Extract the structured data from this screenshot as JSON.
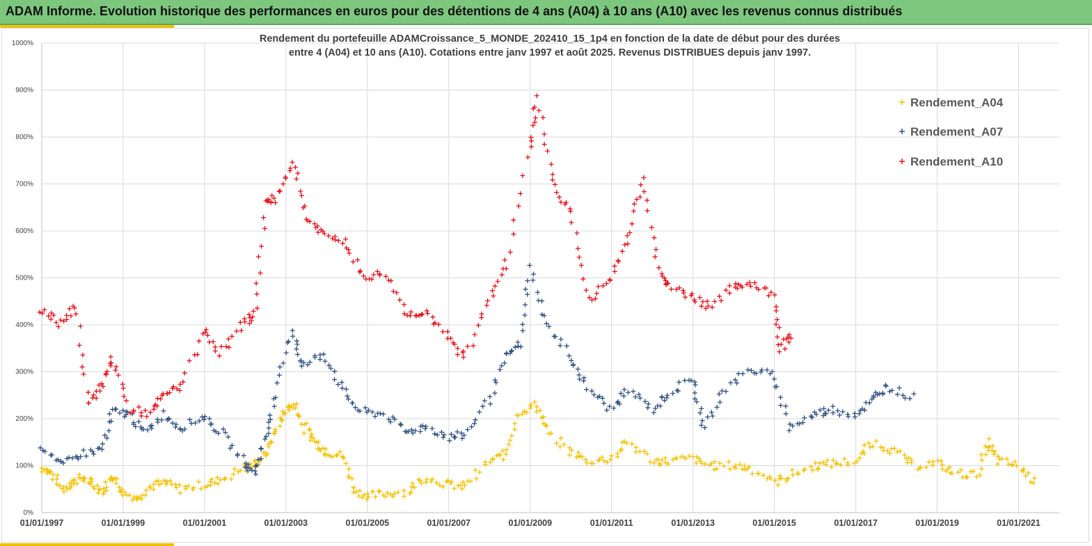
{
  "header": {
    "title": "ADAM Informe. Evolution historique des performances en euros pour des détentions de 4 ans (A04) à 10 ans (A10) avec les revenus connus distribués"
  },
  "colors": {
    "banner": "#7dc67e",
    "accent": "#f2c100",
    "A04": "#f2c100",
    "A07": "#2f4f7f",
    "A10": "#e3101a"
  },
  "chart_data": {
    "type": "scatter",
    "title_line1": "Rendement du portefeuille ADAMCroissance_5_MONDE_202410_15_1p4  en fonction de la date de début pour des durées",
    "title_line2": "entre 4 (A04) et 10 ans (A10). Cotations entre janv 1997 et août 2025. Revenus DISTRIBUES depuis janv 1997.",
    "marker": "+",
    "ylim": [
      0,
      10
    ],
    "yticks": [
      "0%",
      "100%",
      "200%",
      "300%",
      "400%",
      "500%",
      "600%",
      "700%",
      "800%",
      "900%",
      "1000%"
    ],
    "xlim": [
      "1997-01-01",
      "2022-01-01"
    ],
    "xticks": [
      "01/01/1997",
      "01/01/1999",
      "01/01/2001",
      "01/01/2003",
      "01/01/2005",
      "01/01/2007",
      "01/01/2009",
      "01/01/2011",
      "01/01/2013",
      "01/01/2015",
      "01/01/2017",
      "01/01/2019",
      "01/01/2021"
    ],
    "grid": true,
    "legend_position": "top-right",
    "series": [
      {
        "name": "Rendement_A04",
        "points": [
          [
            "1997-01-01",
            0.95
          ],
          [
            "1997-04-01",
            0.85
          ],
          [
            "1997-07-01",
            0.5
          ],
          [
            "1997-10-01",
            0.65
          ],
          [
            "1998-01-01",
            0.75
          ],
          [
            "1998-04-01",
            0.6
          ],
          [
            "1998-07-01",
            0.45
          ],
          [
            "1998-10-01",
            0.8
          ],
          [
            "1999-01-01",
            0.45
          ],
          [
            "1999-05-01",
            0.3
          ],
          [
            "1999-09-01",
            0.55
          ],
          [
            "2000-01-01",
            0.65
          ],
          [
            "2000-06-01",
            0.5
          ],
          [
            "2001-01-01",
            0.6
          ],
          [
            "2001-06-01",
            0.7
          ],
          [
            "2002-01-01",
            0.95
          ],
          [
            "2002-04-01",
            1.05
          ],
          [
            "2002-07-01",
            1.25
          ],
          [
            "2002-10-01",
            1.75
          ],
          [
            "2003-01-01",
            2.2
          ],
          [
            "2003-04-01",
            2.3
          ],
          [
            "2003-07-01",
            1.75
          ],
          [
            "2003-10-01",
            1.5
          ],
          [
            "2004-01-01",
            1.3
          ],
          [
            "2004-06-01",
            1.2
          ],
          [
            "2004-09-01",
            0.5
          ],
          [
            "2005-01-01",
            0.35
          ],
          [
            "2005-06-01",
            0.4
          ],
          [
            "2006-01-01",
            0.45
          ],
          [
            "2006-06-01",
            0.75
          ],
          [
            "2007-01-01",
            0.6
          ],
          [
            "2007-06-01",
            0.55
          ],
          [
            "2008-01-01",
            1.1
          ],
          [
            "2008-06-01",
            1.25
          ],
          [
            "2008-10-01",
            2.15
          ],
          [
            "2009-03-01",
            2.3
          ],
          [
            "2009-06-01",
            1.7
          ],
          [
            "2010-01-01",
            1.3
          ],
          [
            "2010-06-01",
            1.1
          ],
          [
            "2011-01-01",
            1.15
          ],
          [
            "2011-06-01",
            1.5
          ],
          [
            "2012-01-01",
            1.1
          ],
          [
            "2012-06-01",
            1.1
          ],
          [
            "2013-01-01",
            1.15
          ],
          [
            "2013-06-01",
            1.0
          ],
          [
            "2014-01-01",
            1.0
          ],
          [
            "2014-06-01",
            0.95
          ],
          [
            "2015-01-01",
            0.65
          ],
          [
            "2015-06-01",
            0.8
          ],
          [
            "2016-01-01",
            1.0
          ],
          [
            "2016-06-01",
            1.05
          ],
          [
            "2017-01-01",
            1.1
          ],
          [
            "2017-06-01",
            1.5
          ],
          [
            "2018-01-01",
            1.3
          ],
          [
            "2018-06-01",
            1.0
          ],
          [
            "2019-01-01",
            1.05
          ],
          [
            "2019-06-01",
            0.85
          ],
          [
            "2020-01-01",
            0.8
          ],
          [
            "2020-04-01",
            1.5
          ],
          [
            "2020-07-01",
            1.1
          ],
          [
            "2021-01-01",
            1.0
          ],
          [
            "2021-06-01",
            0.65
          ]
        ]
      },
      {
        "name": "Rendement_A07",
        "points": [
          [
            "1997-01-01",
            1.45
          ],
          [
            "1997-07-01",
            1.0
          ],
          [
            "1998-01-01",
            1.25
          ],
          [
            "1998-07-01",
            1.35
          ],
          [
            "1998-10-01",
            2.15
          ],
          [
            "1999-03-01",
            2.1
          ],
          [
            "1999-07-01",
            1.7
          ],
          [
            "2000-01-01",
            2.1
          ],
          [
            "2000-06-01",
            1.8
          ],
          [
            "2001-01-01",
            2.05
          ],
          [
            "2001-06-01",
            1.7
          ],
          [
            "2002-01-01",
            1.05
          ],
          [
            "2002-04-01",
            0.85
          ],
          [
            "2002-07-01",
            1.6
          ],
          [
            "2002-10-01",
            2.5
          ],
          [
            "2003-03-01",
            3.9
          ],
          [
            "2003-06-01",
            3.1
          ],
          [
            "2003-12-01",
            3.4
          ],
          [
            "2004-06-01",
            2.6
          ],
          [
            "2004-11-01",
            2.15
          ],
          [
            "2005-06-01",
            2.1
          ],
          [
            "2006-01-01",
            1.7
          ],
          [
            "2006-06-01",
            1.85
          ],
          [
            "2007-01-01",
            1.6
          ],
          [
            "2007-06-01",
            1.65
          ],
          [
            "2008-01-01",
            2.4
          ],
          [
            "2008-06-01",
            3.3
          ],
          [
            "2008-10-01",
            3.6
          ],
          [
            "2009-01-01",
            5.2
          ],
          [
            "2009-06-01",
            4.0
          ],
          [
            "2010-01-01",
            3.3
          ],
          [
            "2010-06-01",
            2.65
          ],
          [
            "2011-01-01",
            2.2
          ],
          [
            "2011-06-01",
            2.6
          ],
          [
            "2012-01-01",
            2.2
          ],
          [
            "2012-06-01",
            2.55
          ],
          [
            "2013-01-01",
            2.85
          ],
          [
            "2013-04-01",
            1.8
          ],
          [
            "2013-10-01",
            2.6
          ],
          [
            "2014-06-01",
            3.05
          ],
          [
            "2015-01-01",
            2.9
          ],
          [
            "2015-06-01",
            1.8
          ],
          [
            "2016-01-01",
            2.1
          ],
          [
            "2016-06-01",
            2.2
          ],
          [
            "2017-01-01",
            2.1
          ],
          [
            "2017-06-01",
            2.4
          ],
          [
            "2017-10-01",
            2.7
          ],
          [
            "2018-06-01",
            2.45
          ]
        ]
      },
      {
        "name": "Rendement_A10",
        "points": [
          [
            "1997-01-01",
            4.35
          ],
          [
            "1997-06-01",
            4.05
          ],
          [
            "1997-11-01",
            4.4
          ],
          [
            "1998-03-01",
            2.35
          ],
          [
            "1998-07-01",
            2.7
          ],
          [
            "1998-10-01",
            3.3
          ],
          [
            "1999-03-01",
            2.2
          ],
          [
            "1999-09-01",
            2.1
          ],
          [
            "2000-01-01",
            2.5
          ],
          [
            "2000-06-01",
            2.7
          ],
          [
            "2001-01-01",
            3.9
          ],
          [
            "2001-06-01",
            3.4
          ],
          [
            "2002-01-01",
            4.05
          ],
          [
            "2002-04-01",
            4.3
          ],
          [
            "2002-07-01",
            6.6
          ],
          [
            "2002-10-01",
            6.7
          ],
          [
            "2003-03-01",
            7.5
          ],
          [
            "2003-07-01",
            6.3
          ],
          [
            "2003-12-01",
            5.9
          ],
          [
            "2004-06-01",
            5.8
          ],
          [
            "2004-12-01",
            5.0
          ],
          [
            "2005-06-01",
            5.1
          ],
          [
            "2006-01-01",
            4.2
          ],
          [
            "2006-06-01",
            4.3
          ],
          [
            "2007-01-01",
            3.7
          ],
          [
            "2007-06-01",
            3.3
          ],
          [
            "2008-01-01",
            4.6
          ],
          [
            "2008-06-01",
            5.3
          ],
          [
            "2009-01-01",
            7.8
          ],
          [
            "2009-03-01",
            8.8
          ],
          [
            "2009-08-01",
            7.0
          ],
          [
            "2010-01-01",
            6.4
          ],
          [
            "2010-06-01",
            4.5
          ],
          [
            "2011-01-01",
            5.0
          ],
          [
            "2011-06-01",
            5.9
          ],
          [
            "2011-10-01",
            7.1
          ],
          [
            "2012-03-01",
            5.2
          ],
          [
            "2012-06-01",
            4.8
          ],
          [
            "2013-01-01",
            4.6
          ],
          [
            "2013-06-01",
            4.4
          ],
          [
            "2014-01-01",
            4.8
          ],
          [
            "2014-06-01",
            4.9
          ],
          [
            "2015-01-01",
            4.6
          ],
          [
            "2015-03-01",
            3.5
          ],
          [
            "2015-06-01",
            3.8
          ]
        ]
      }
    ]
  }
}
